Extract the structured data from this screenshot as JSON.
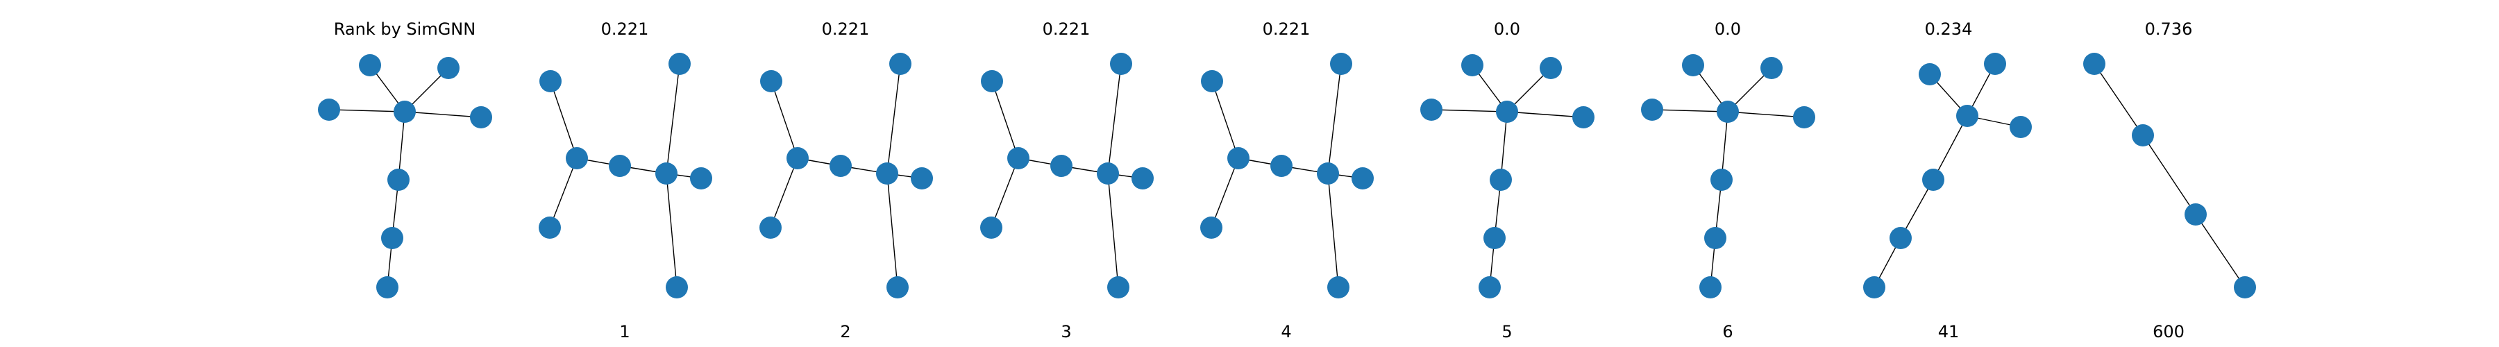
{
  "query": {
    "title": "Rank by SimGNN"
  },
  "results": [
    {
      "score": "0.221",
      "rank": "1"
    },
    {
      "score": "0.221",
      "rank": "2"
    },
    {
      "score": "0.221",
      "rank": "3"
    },
    {
      "score": "0.221",
      "rank": "4"
    },
    {
      "score": "0.0",
      "rank": "5"
    },
    {
      "score": "0.0",
      "rank": "6"
    },
    {
      "score": "0.234",
      "rank": "41"
    },
    {
      "score": "0.736",
      "rank": "600"
    }
  ],
  "colors": {
    "node": "#1f77b4",
    "edge": "#000000",
    "text": "#000000",
    "background": "#ffffff"
  }
}
